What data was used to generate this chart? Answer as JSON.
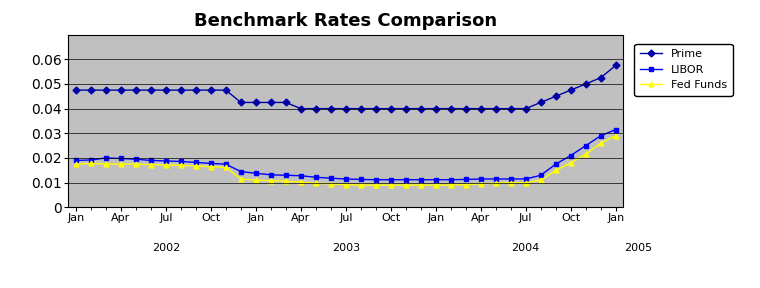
{
  "title": "Benchmark Rates Comparison",
  "title_fontsize": 13,
  "title_fontweight": "bold",
  "background_color": "#c0c0c0",
  "fig_bg_color": "#ffffff",
  "ylim": [
    0,
    0.07
  ],
  "yticks": [
    0,
    0.01,
    0.02,
    0.03,
    0.04,
    0.05,
    0.06
  ],
  "x_tick_labels": [
    "Jan",
    "Apr",
    "Jul",
    "Oct",
    "Jan",
    "Apr",
    "Jul",
    "Oct",
    "Jan",
    "Apr",
    "Jul",
    "Oct",
    "Jan"
  ],
  "x_tick_positions": [
    0,
    3,
    6,
    9,
    12,
    15,
    18,
    21,
    24,
    27,
    30,
    33,
    36
  ],
  "year_labels": [
    {
      "label": "2002",
      "x": 6
    },
    {
      "label": "2003",
      "x": 18
    },
    {
      "label": "2004",
      "x": 30
    },
    {
      "label": "2005",
      "x": 37.5
    }
  ],
  "prime": [
    0.0475,
    0.0475,
    0.0475,
    0.0475,
    0.0475,
    0.0475,
    0.0475,
    0.0475,
    0.0475,
    0.0475,
    0.0475,
    0.0425,
    0.0425,
    0.0425,
    0.0425,
    0.04,
    0.04,
    0.04,
    0.04,
    0.04,
    0.04,
    0.04,
    0.04,
    0.04,
    0.04,
    0.04,
    0.04,
    0.04,
    0.04,
    0.04,
    0.04,
    0.0425,
    0.045,
    0.0475,
    0.05,
    0.0525,
    0.0575
  ],
  "libor": [
    0.019,
    0.0192,
    0.02,
    0.0198,
    0.0195,
    0.019,
    0.0188,
    0.0186,
    0.0182,
    0.0178,
    0.0175,
    0.0145,
    0.0138,
    0.0132,
    0.013,
    0.0128,
    0.0122,
    0.0118,
    0.0115,
    0.0113,
    0.0112,
    0.0112,
    0.0112,
    0.0112,
    0.0112,
    0.0112,
    0.0113,
    0.0115,
    0.0115,
    0.0115,
    0.0115,
    0.013,
    0.0175,
    0.021,
    0.025,
    0.029,
    0.0315
  ],
  "fed_funds": [
    0.0175,
    0.0178,
    0.0176,
    0.0175,
    0.0175,
    0.0173,
    0.0172,
    0.017,
    0.0168,
    0.0165,
    0.0162,
    0.0115,
    0.011,
    0.0108,
    0.0106,
    0.0102,
    0.0098,
    0.0095,
    0.0092,
    0.009,
    0.009,
    0.009,
    0.009,
    0.009,
    0.009,
    0.009,
    0.0092,
    0.0095,
    0.0098,
    0.01,
    0.01,
    0.011,
    0.015,
    0.018,
    0.0215,
    0.026,
    0.029
  ],
  "prime_color": "#0000aa",
  "libor_color": "#0000ff",
  "fed_funds_color": "#ffff00",
  "prime_marker": "D",
  "libor_marker": "s",
  "fed_funds_marker": "^",
  "legend_labels": [
    "Prime",
    "LIBOR",
    "Fed Funds"
  ]
}
